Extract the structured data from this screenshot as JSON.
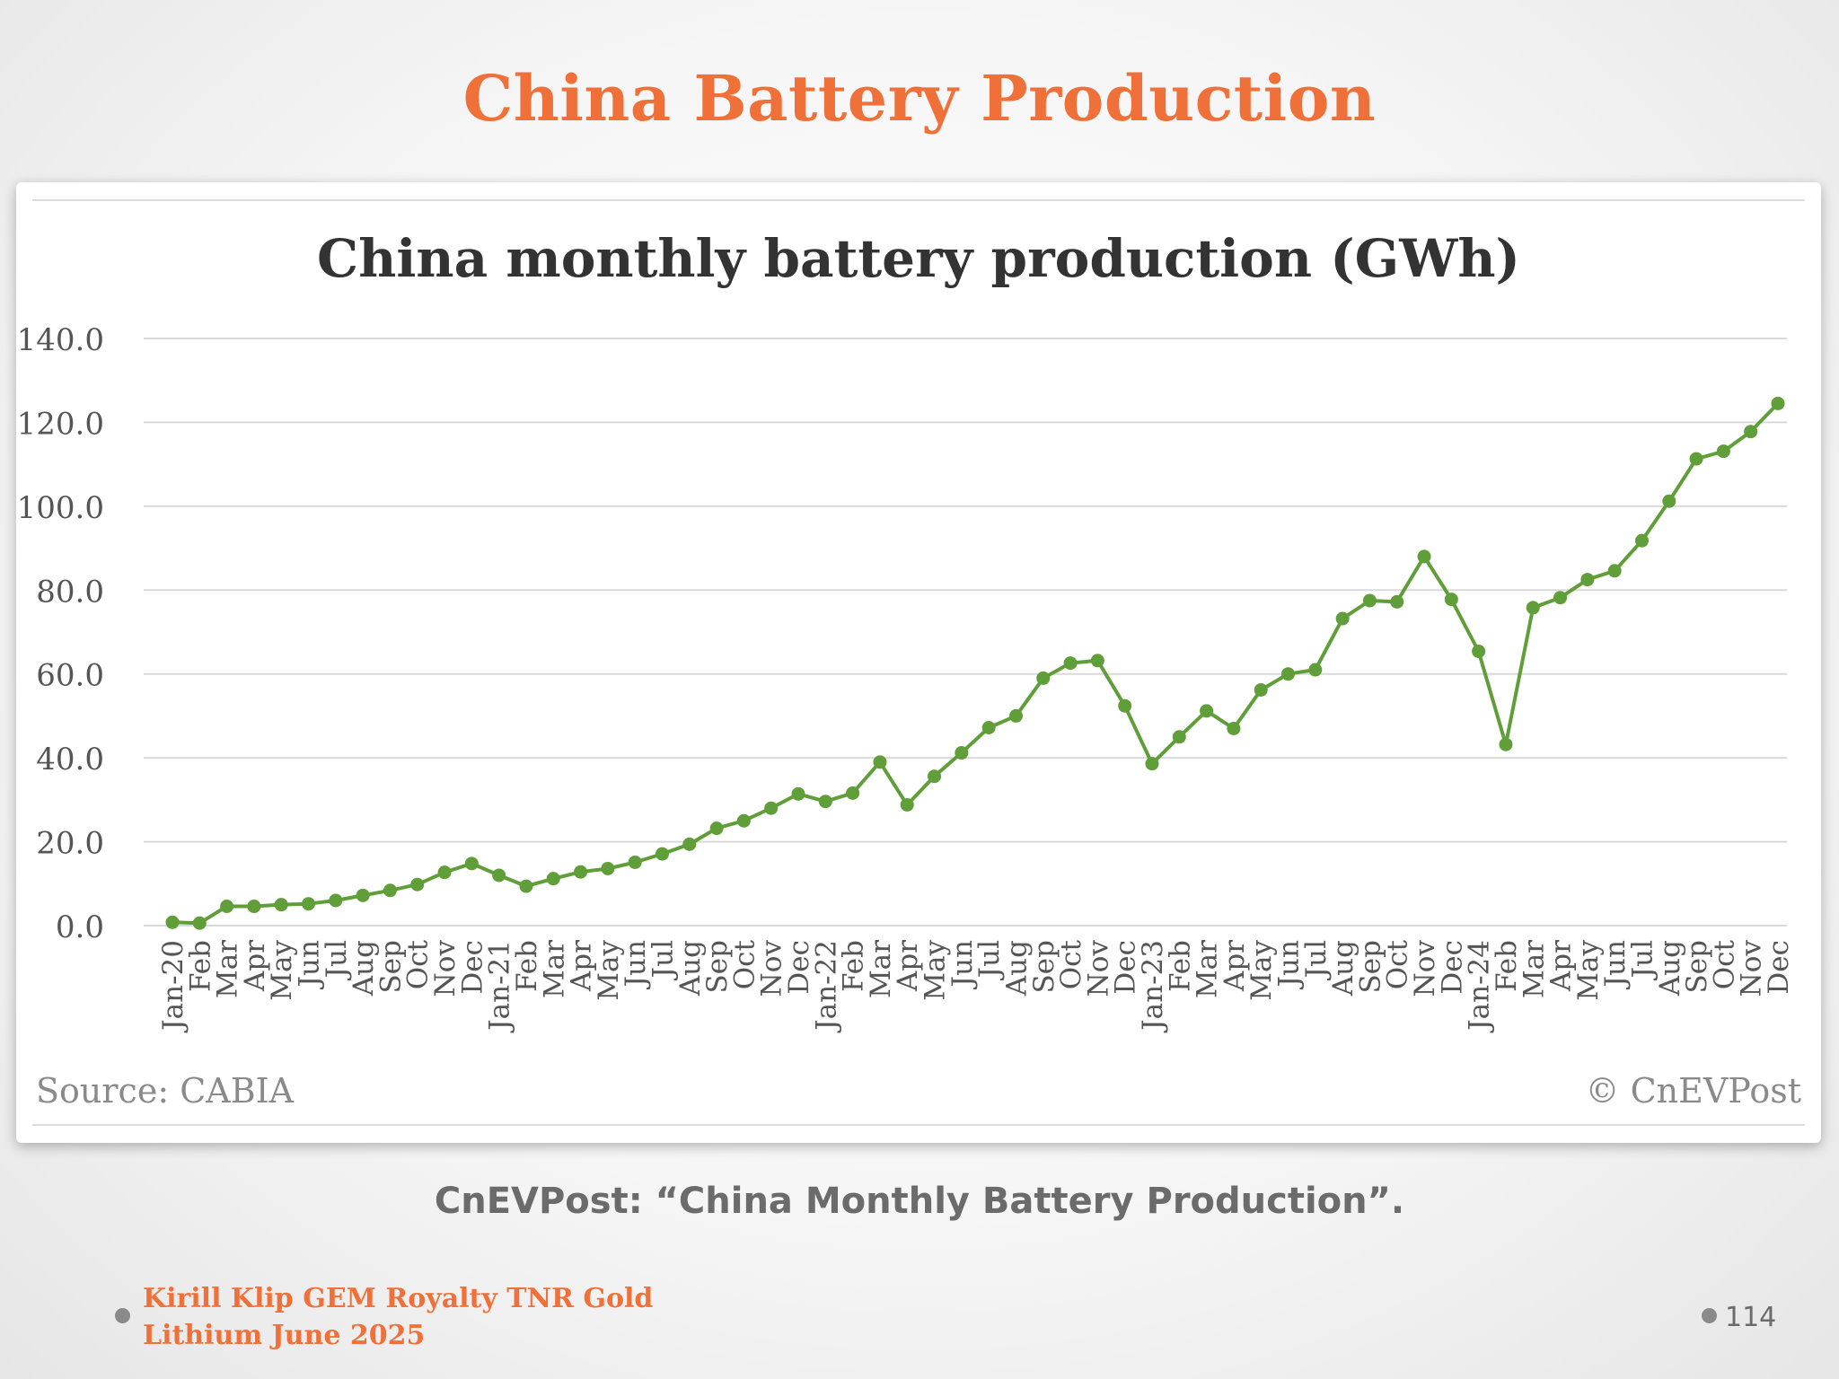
{
  "slide": {
    "title": "China Battery Production",
    "caption": "CnEVPost: “China Monthly Battery Production”.",
    "footer_line1": "Kirill Klip GEM Royalty TNR Gold",
    "footer_line2": "Lithium June 2025",
    "page_number": "114"
  },
  "colors": {
    "title": "#f0703a",
    "series": "#5f9e38",
    "grid": "#d9d9d9",
    "text": "#555555"
  },
  "chart_data": {
    "type": "line",
    "title": "China monthly battery production (GWh)",
    "xlabel": "",
    "ylabel": "",
    "ylim": [
      0,
      140
    ],
    "yticks": [
      "0.0",
      "20.0",
      "40.0",
      "60.0",
      "80.0",
      "100.0",
      "120.0",
      "140.0"
    ],
    "ytick_values": [
      0,
      20,
      40,
      60,
      80,
      100,
      120,
      140
    ],
    "grid": true,
    "legend": "none",
    "source": "Source: CABIA",
    "watermark": "© CnEVPost",
    "categories": [
      "Jan-20",
      "Feb",
      "Mar",
      "Apr",
      "May",
      "Jun",
      "Jul",
      "Aug",
      "Sep",
      "Oct",
      "Nov",
      "Dec",
      "Jan-21",
      "Feb",
      "Mar",
      "Apr",
      "May",
      "Jun",
      "Jul",
      "Aug",
      "Sep",
      "Oct",
      "Nov",
      "Dec",
      "Jan-22",
      "Feb",
      "Mar",
      "Apr",
      "May",
      "Jun",
      "Jul",
      "Aug",
      "Sep",
      "Oct",
      "Nov",
      "Dec",
      "Jan-23",
      "Feb",
      "Mar",
      "Apr",
      "May",
      "Jun",
      "Jul",
      "Aug",
      "Sep",
      "Oct",
      "Nov",
      "Dec",
      "Jan-24",
      "Feb",
      "Mar",
      "Apr",
      "May",
      "Jun",
      "Jul",
      "Aug",
      "Sep",
      "Oct",
      "Nov",
      "Dec"
    ],
    "series": [
      {
        "values": [
          0.8,
          0.6,
          4.6,
          4.6,
          5.0,
          5.2,
          6.0,
          7.2,
          8.4,
          9.8,
          12.7,
          14.8,
          12.0,
          9.4,
          11.2,
          12.8,
          13.6,
          15.1,
          17.1,
          19.4,
          23.2,
          25.0,
          28.0,
          31.4,
          29.6,
          31.6,
          39.0,
          28.8,
          35.6,
          41.2,
          47.2,
          50.0,
          59.0,
          62.6,
          63.2,
          52.4,
          38.6,
          45.0,
          51.2,
          47.0,
          56.2,
          60.0,
          61.0,
          73.2,
          77.5,
          77.2,
          88.0,
          77.8,
          65.4,
          43.2,
          75.8,
          78.2,
          82.5,
          84.6,
          91.8,
          101.2,
          111.3,
          113.1,
          117.8,
          124.5
        ]
      }
    ]
  }
}
